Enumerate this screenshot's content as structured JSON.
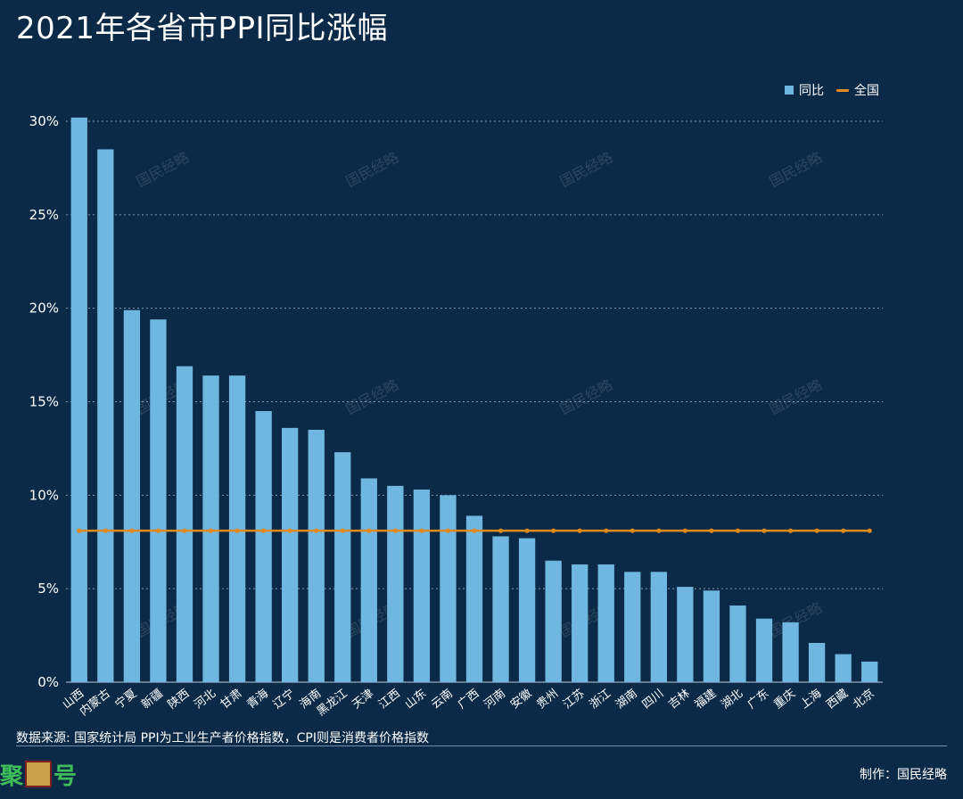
{
  "title": "2021年各省市PPI同比涨幅",
  "legend": {
    "bar_label": "同比",
    "line_label": "全国"
  },
  "colors": {
    "bar": "#6fb6e0",
    "line": "#e08a1e",
    "grid": "#9fb8cf",
    "background": "#0b2a47"
  },
  "watermark": "国民经略",
  "source_text": "数据来源: 国家统计局  PPI为工业生产者价格指数，CPI则是消费者价格指数",
  "credit_text": "制作：国民经略",
  "brand": {
    "text": "聚",
    "suffix": "号"
  },
  "chart_data": {
    "type": "bar",
    "categories": [
      "山西",
      "内蒙古",
      "宁夏",
      "新疆",
      "陕西",
      "河北",
      "甘肃",
      "青海",
      "辽宁",
      "海南",
      "黑龙江",
      "天津",
      "江西",
      "山东",
      "云南",
      "广西",
      "河南",
      "安徽",
      "贵州",
      "江苏",
      "浙江",
      "湖南",
      "四川",
      "吉林",
      "福建",
      "湖北",
      "广东",
      "重庆",
      "上海",
      "西藏",
      "北京"
    ],
    "series": [
      {
        "name": "同比",
        "type": "bar",
        "values": [
          30.2,
          28.5,
          19.9,
          19.4,
          16.9,
          16.4,
          16.4,
          14.5,
          13.6,
          13.5,
          12.3,
          10.9,
          10.5,
          10.3,
          10.0,
          8.9,
          7.8,
          7.7,
          6.5,
          6.3,
          6.3,
          5.9,
          5.9,
          5.1,
          4.9,
          4.1,
          3.4,
          3.2,
          2.1,
          1.5,
          1.1
        ]
      },
      {
        "name": "全国",
        "type": "line",
        "values": [
          8.1,
          8.1,
          8.1,
          8.1,
          8.1,
          8.1,
          8.1,
          8.1,
          8.1,
          8.1,
          8.1,
          8.1,
          8.1,
          8.1,
          8.1,
          8.1,
          8.1,
          8.1,
          8.1,
          8.1,
          8.1,
          8.1,
          8.1,
          8.1,
          8.1,
          8.1,
          8.1,
          8.1,
          8.1,
          8.1,
          8.1
        ]
      }
    ],
    "y_ticks": [
      "0%",
      "5%",
      "10%",
      "15%",
      "20%",
      "25%",
      "30%"
    ],
    "ylim": [
      0,
      30
    ],
    "grid": true,
    "legend_position": "top-right"
  }
}
